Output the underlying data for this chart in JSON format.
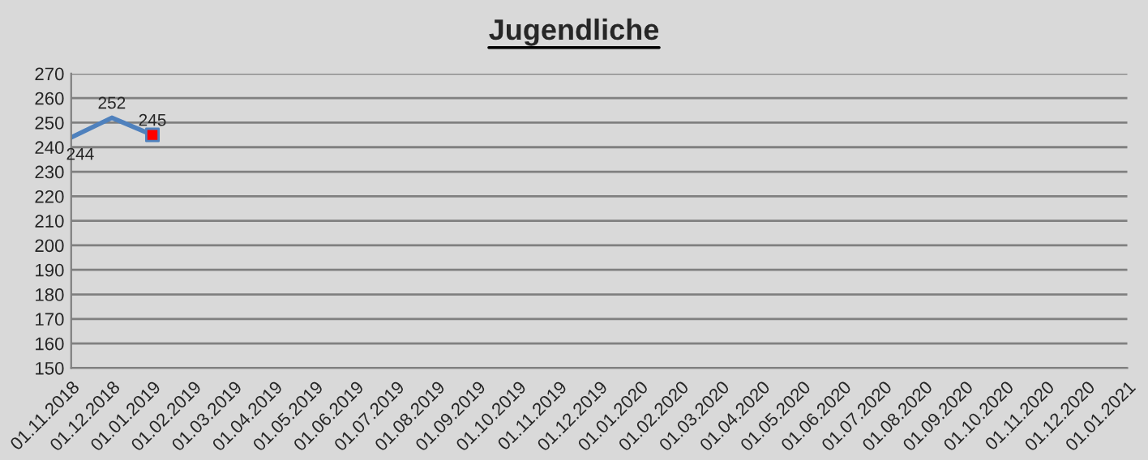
{
  "chart_data": {
    "type": "line",
    "title": "Jugendliche",
    "categories": [
      "01.11.2018",
      "01.12.2018",
      "01.01.2019",
      "01.02.2019",
      "01.03.2019",
      "01.04.2019",
      "01.05.2019",
      "01.06.2019",
      "01.07.2019",
      "01.08.2019",
      "01.09.2019",
      "01.10.2019",
      "01.11.2019",
      "01.12.2019",
      "01.01.2020",
      "01.02.2020",
      "01.03.2020",
      "01.04.2020",
      "01.05.2020",
      "01.06.2020",
      "01.07.2020",
      "01.08.2020",
      "01.09.2020",
      "01.10.2020",
      "01.11.2020",
      "01.12.2020",
      "01.01.2021"
    ],
    "series": [
      {
        "color": "#4f81bd",
        "values": [
          244,
          252,
          245,
          null,
          null,
          null,
          null,
          null,
          null,
          null,
          null,
          null,
          null,
          null,
          null,
          null,
          null,
          null,
          null,
          null,
          null,
          null,
          null,
          null,
          null,
          null,
          null
        ],
        "value_labels": [
          "244",
          "252",
          "245",
          null,
          null,
          null,
          null,
          null,
          null,
          null,
          null,
          null,
          null,
          null,
          null,
          null,
          null,
          null,
          null,
          null,
          null,
          null,
          null,
          null,
          null,
          null,
          null
        ]
      },
      {
        "type": "scatter",
        "color": "#ff0000",
        "marker": "square",
        "x": [
          "01.01.2019"
        ],
        "values": [
          245
        ]
      }
    ],
    "ylim": [
      150,
      270
    ],
    "yticks": [
      150,
      160,
      170,
      180,
      190,
      200,
      210,
      220,
      230,
      240,
      250,
      260,
      270
    ],
    "grid": "y",
    "legend": false
  }
}
